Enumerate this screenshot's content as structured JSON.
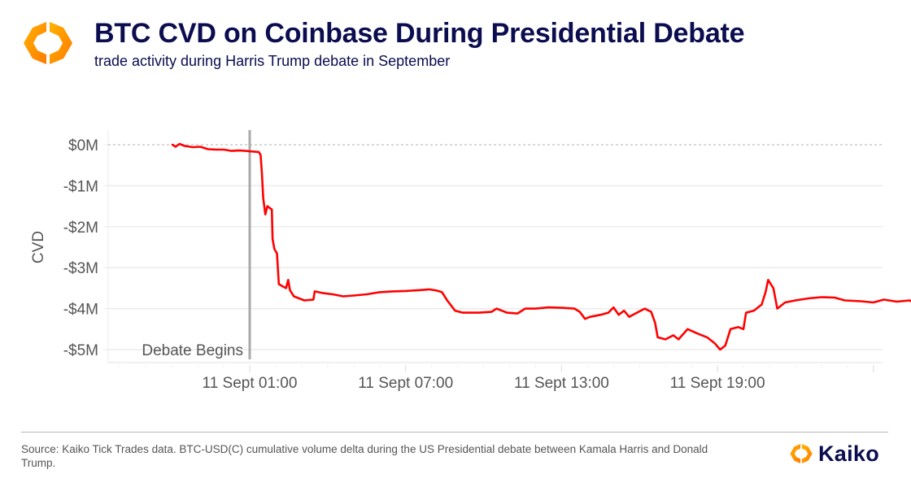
{
  "header": {
    "title": "BTC CVD on Coinbase During Presidential Debate",
    "subtitle": "trade activity during Harris Trump debate in September",
    "logo_icon": "kaiko-hexagon-logo-icon"
  },
  "colors": {
    "title": "#0b0d4f",
    "line": "#ff0000",
    "event_line": "#a9a9a9",
    "gridline": "#ebebeb",
    "zero_line": "#b0b0b0",
    "axis_text": "#555555",
    "logo_orange": "#ff8a00",
    "logo_yellow": "#ffb300"
  },
  "chart_data": {
    "type": "line",
    "title": "BTC CVD on Coinbase During Presidential Debate",
    "subtitle": "trade activity during Harris Trump debate in September",
    "xlabel": "",
    "ylabel": "CVD",
    "x_unit": "hours relative to 11 Sept 01:00",
    "y_unit": "USD millions",
    "xlim": [
      -5.6,
      24.2
    ],
    "ylim": [
      -5.3,
      0.3
    ],
    "x_ticks": [
      {
        "value": 0,
        "label": "11 Sept 01:00"
      },
      {
        "value": 6,
        "label": "11 Sept 07:00"
      },
      {
        "value": 12,
        "label": "11 Sept 13:00"
      },
      {
        "value": 18,
        "label": "11 Sept 19:00"
      }
    ],
    "y_ticks": [
      {
        "value": 0,
        "label": "$0M"
      },
      {
        "value": -1,
        "label": "-$1M"
      },
      {
        "value": -2,
        "label": "-$2M"
      },
      {
        "value": -3,
        "label": "-$3M"
      },
      {
        "value": -4,
        "label": "-$4M"
      },
      {
        "value": -5,
        "label": "-$5M"
      }
    ],
    "grid": true,
    "reference_lines": [
      {
        "axis": "y",
        "value": 0,
        "style": "dashed"
      }
    ],
    "annotations": [
      {
        "type": "vline",
        "x": 0,
        "label": "Debate Begins",
        "label_position": "bottom-left"
      }
    ],
    "legend": "none",
    "series": [
      {
        "name": "BTC-USD(C) CVD",
        "points": [
          [
            -2.97,
            0.0
          ],
          [
            -2.85,
            -0.05
          ],
          [
            -2.7,
            0.02
          ],
          [
            -2.5,
            -0.03
          ],
          [
            -2.2,
            -0.06
          ],
          [
            -1.9,
            -0.05
          ],
          [
            -1.6,
            -0.11
          ],
          [
            -1.3,
            -0.12
          ],
          [
            -1.0,
            -0.12
          ],
          [
            -0.7,
            -0.15
          ],
          [
            -0.4,
            -0.14
          ],
          [
            -0.15,
            -0.15
          ],
          [
            0.0,
            -0.16
          ],
          [
            0.2,
            -0.17
          ],
          [
            0.35,
            -0.18
          ],
          [
            0.42,
            -0.25
          ],
          [
            0.47,
            -0.7
          ],
          [
            0.52,
            -1.3
          ],
          [
            0.6,
            -1.7
          ],
          [
            0.68,
            -1.5
          ],
          [
            0.78,
            -1.55
          ],
          [
            0.85,
            -1.58
          ],
          [
            0.88,
            -2.3
          ],
          [
            0.95,
            -2.55
          ],
          [
            1.05,
            -2.65
          ],
          [
            1.12,
            -3.4
          ],
          [
            1.25,
            -3.45
          ],
          [
            1.4,
            -3.5
          ],
          [
            1.48,
            -3.3
          ],
          [
            1.55,
            -3.55
          ],
          [
            1.7,
            -3.7
          ],
          [
            1.9,
            -3.75
          ],
          [
            2.1,
            -3.8
          ],
          [
            2.45,
            -3.78
          ],
          [
            2.5,
            -3.58
          ],
          [
            2.8,
            -3.62
          ],
          [
            3.2,
            -3.65
          ],
          [
            3.6,
            -3.7
          ],
          [
            4.0,
            -3.68
          ],
          [
            4.5,
            -3.65
          ],
          [
            5.0,
            -3.6
          ],
          [
            5.5,
            -3.58
          ],
          [
            6.0,
            -3.57
          ],
          [
            6.5,
            -3.55
          ],
          [
            6.9,
            -3.53
          ],
          [
            7.2,
            -3.56
          ],
          [
            7.4,
            -3.6
          ],
          [
            7.6,
            -3.8
          ],
          [
            7.9,
            -4.05
          ],
          [
            8.2,
            -4.1
          ],
          [
            8.8,
            -4.1
          ],
          [
            9.3,
            -4.08
          ],
          [
            9.5,
            -4.0
          ],
          [
            9.9,
            -4.1
          ],
          [
            10.3,
            -4.12
          ],
          [
            10.6,
            -4.0
          ],
          [
            11.0,
            -4.0
          ],
          [
            11.5,
            -3.97
          ],
          [
            12.0,
            -3.98
          ],
          [
            12.5,
            -4.0
          ],
          [
            12.7,
            -4.08
          ],
          [
            12.9,
            -4.25
          ],
          [
            13.1,
            -4.2
          ],
          [
            13.5,
            -4.15
          ],
          [
            13.8,
            -4.1
          ],
          [
            14.0,
            -3.97
          ],
          [
            14.2,
            -4.15
          ],
          [
            14.4,
            -4.05
          ],
          [
            14.6,
            -4.2
          ],
          [
            14.9,
            -4.1
          ],
          [
            15.2,
            -4.0
          ],
          [
            15.45,
            -4.08
          ],
          [
            15.6,
            -4.35
          ],
          [
            15.7,
            -4.7
          ],
          [
            16.0,
            -4.75
          ],
          [
            16.3,
            -4.65
          ],
          [
            16.5,
            -4.75
          ],
          [
            16.85,
            -4.5
          ],
          [
            17.2,
            -4.6
          ],
          [
            17.6,
            -4.7
          ],
          [
            17.9,
            -4.85
          ],
          [
            18.1,
            -5.0
          ],
          [
            18.3,
            -4.9
          ],
          [
            18.5,
            -4.5
          ],
          [
            18.8,
            -4.45
          ],
          [
            19.0,
            -4.5
          ],
          [
            19.1,
            -4.1
          ],
          [
            19.4,
            -4.05
          ],
          [
            19.7,
            -3.9
          ],
          [
            19.85,
            -3.6
          ],
          [
            19.95,
            -3.3
          ],
          [
            20.15,
            -3.5
          ],
          [
            20.3,
            -4.0
          ],
          [
            20.6,
            -3.85
          ],
          [
            21.0,
            -3.8
          ],
          [
            21.5,
            -3.75
          ],
          [
            22.0,
            -3.72
          ],
          [
            22.5,
            -3.73
          ],
          [
            22.9,
            -3.8
          ],
          [
            23.5,
            -3.82
          ],
          [
            24.0,
            -3.85
          ],
          [
            24.4,
            -3.78
          ],
          [
            24.9,
            -3.83
          ],
          [
            25.4,
            -3.8
          ],
          [
            25.6,
            -3.88
          ],
          [
            26.1,
            -3.92
          ]
        ]
      }
    ]
  },
  "footer": {
    "source": "Source: Kaiko Tick Trades data. BTC-USD(C) cumulative volume delta during the US Presidential debate between Kamala Harris and Donald Trump.",
    "brand_name": "Kaiko",
    "brand_icon": "kaiko-hexagon-logo-icon"
  }
}
